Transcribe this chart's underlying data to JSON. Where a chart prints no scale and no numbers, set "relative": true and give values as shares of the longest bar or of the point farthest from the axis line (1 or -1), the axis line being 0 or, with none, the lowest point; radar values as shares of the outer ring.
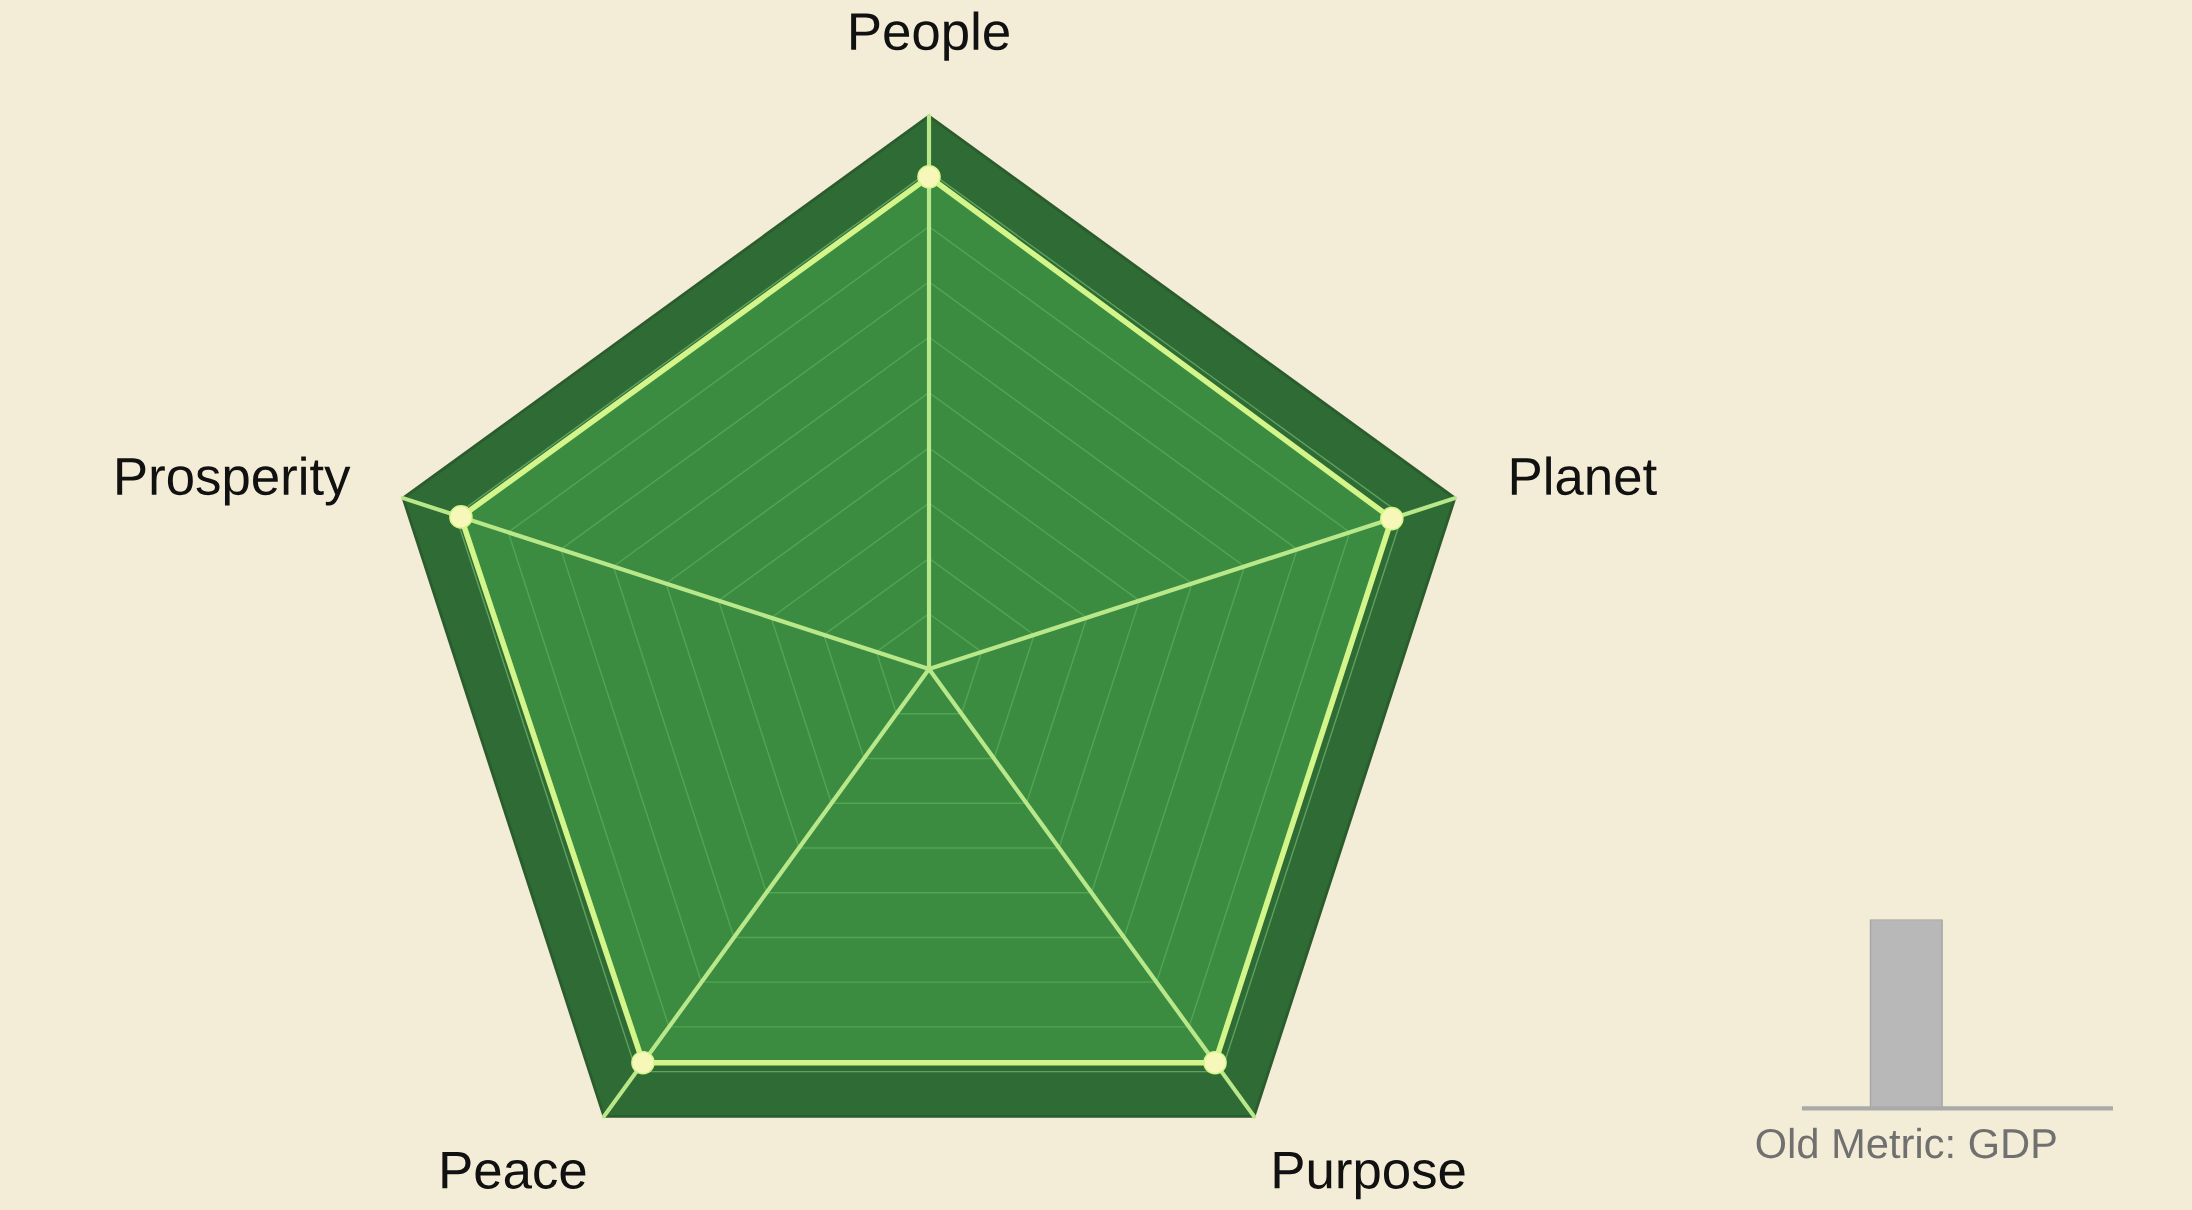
{
  "chart_data": [
    {
      "type": "radar",
      "relative": true,
      "categories": [
        "People",
        "Planet",
        "Purpose",
        "Peace",
        "Prosperity"
      ],
      "series": [
        {
          "color": "#d4f58a",
          "values": [
            0.89,
            0.88,
            0.88,
            0.88,
            0.89
          ]
        }
      ],
      "marker": "circle",
      "grid": true
    },
    {
      "type": "bar",
      "relative": true,
      "categories": [
        "Old Metric: GDP"
      ],
      "values": [
        1
      ],
      "color": "#b8b8b8"
    }
  ]
}
